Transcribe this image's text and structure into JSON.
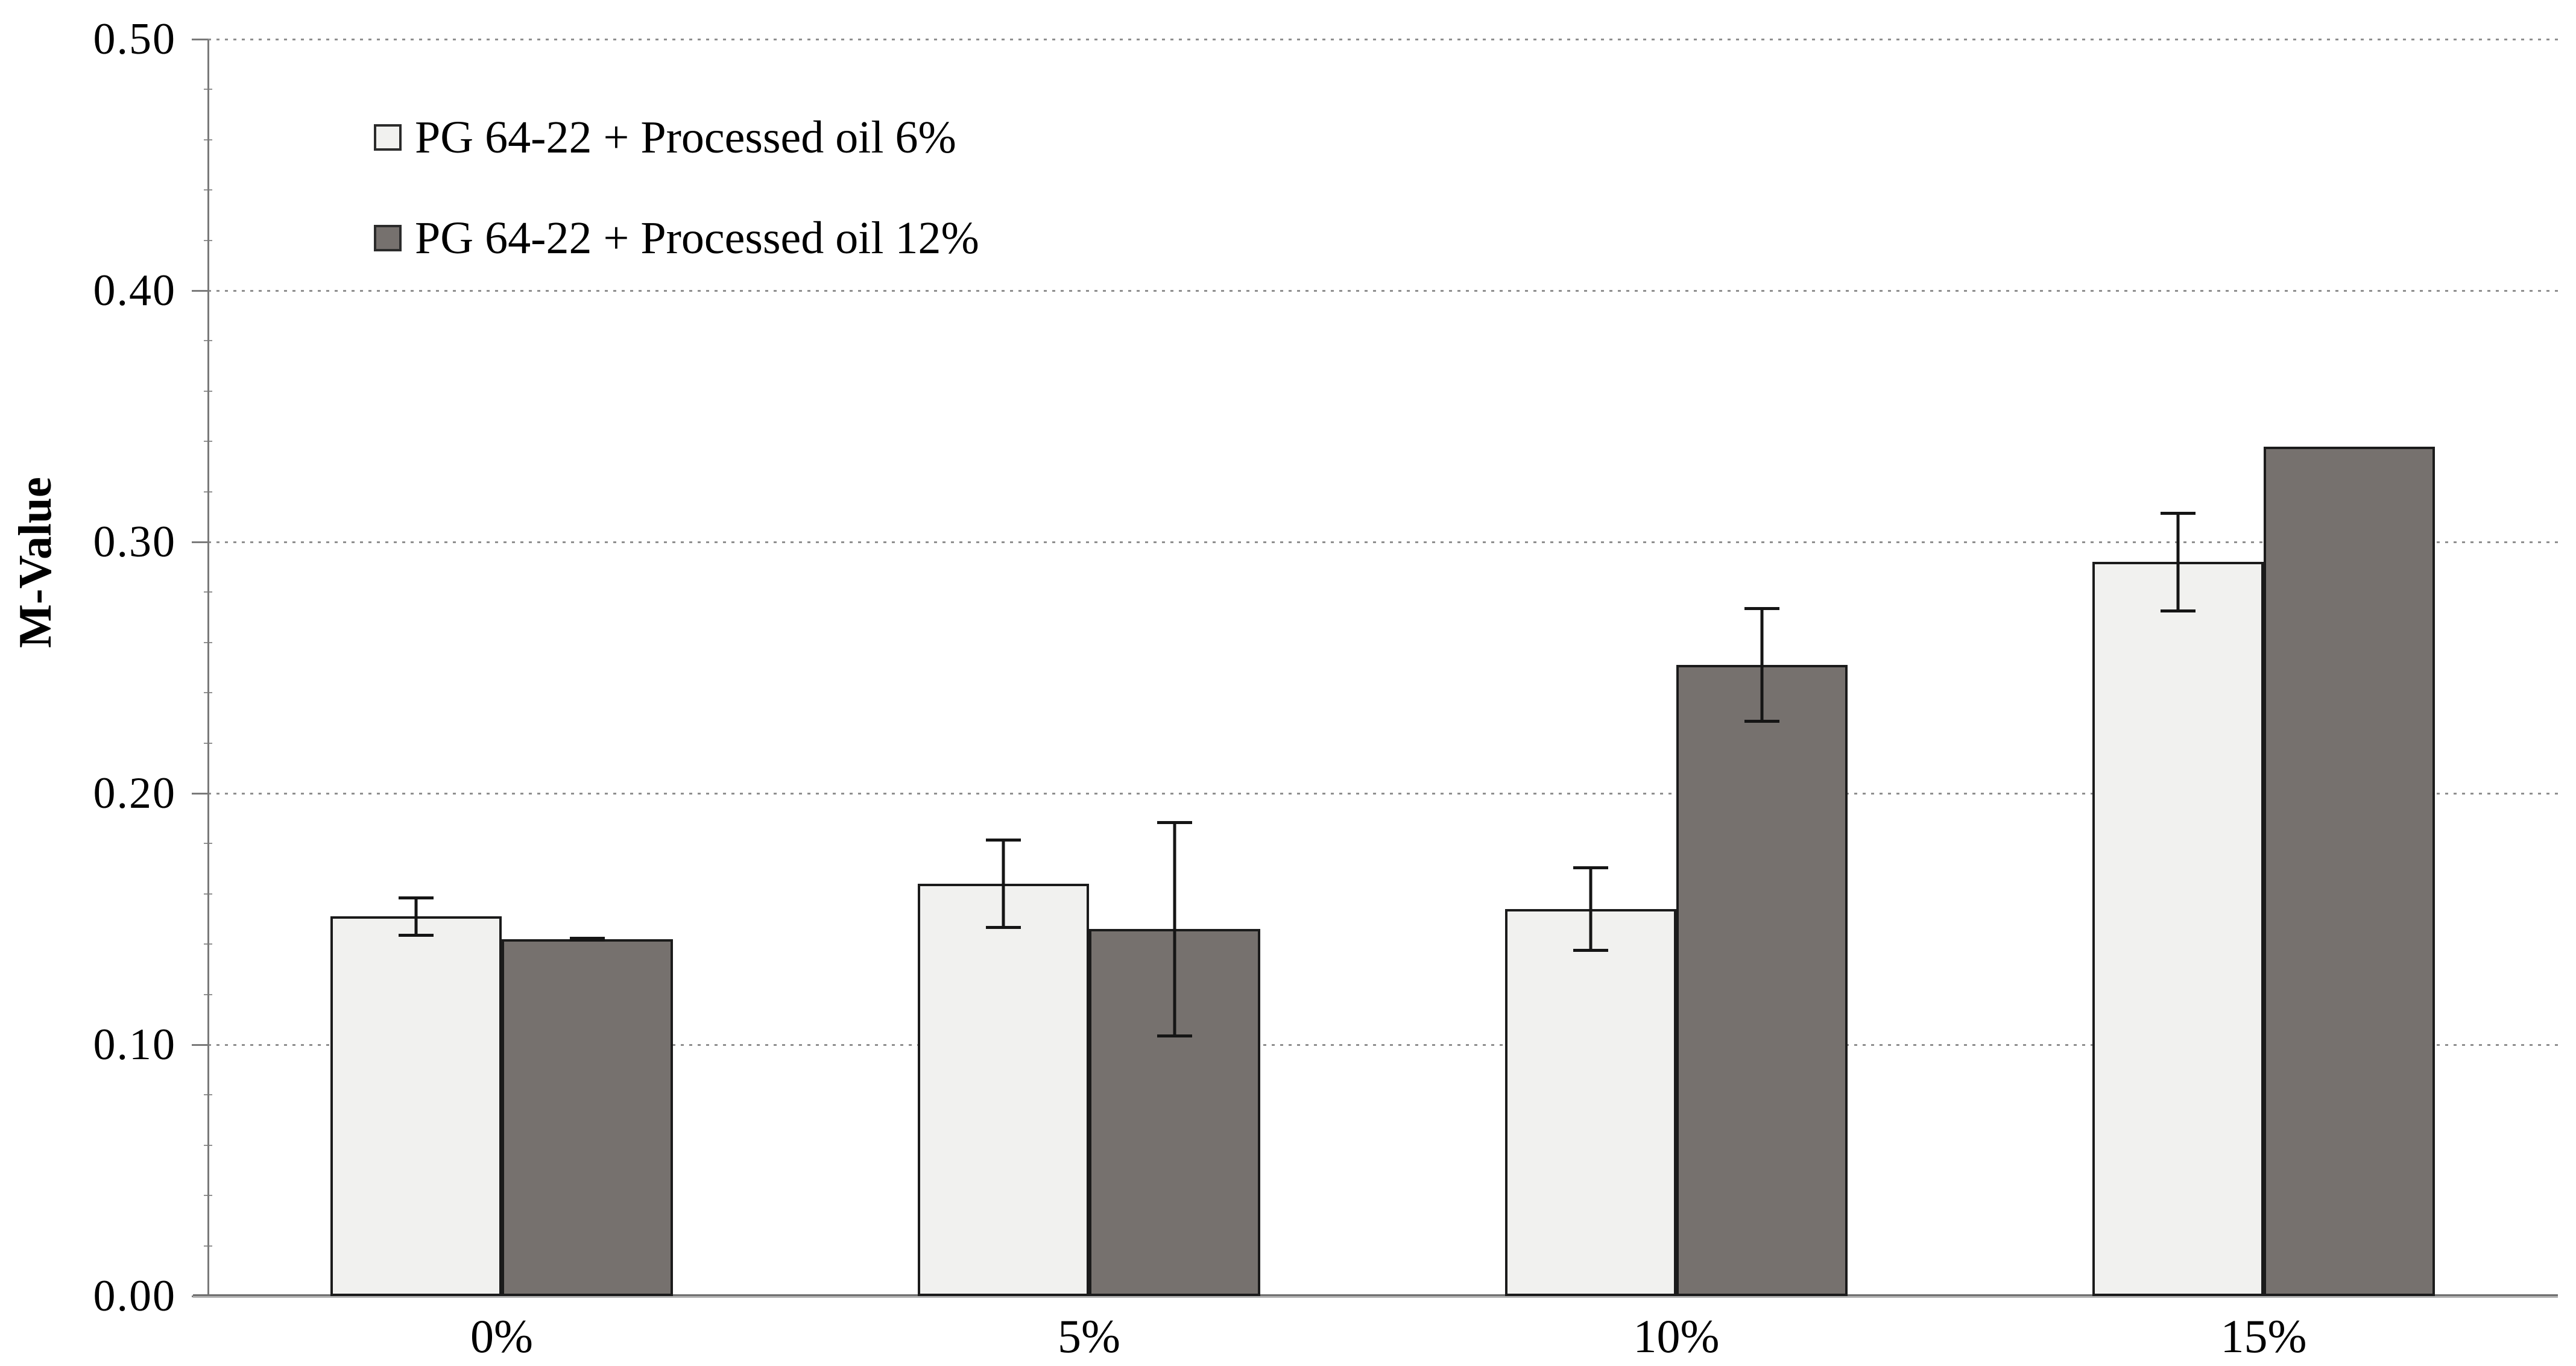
{
  "chart_data": {
    "type": "bar",
    "title": "",
    "xlabel": "",
    "ylabel": "M-Value",
    "categories": [
      "0%",
      "5%",
      "10%",
      "15%"
    ],
    "series": [
      {
        "name": "PG 64-22 + Processed oil 6%",
        "fill": "#f1f1ef",
        "values": [
          0.151,
          0.164,
          0.154,
          0.292
        ],
        "errors": [
          0.008,
          0.018,
          0.017,
          0.02
        ]
      },
      {
        "name": "PG 64-22 + Processed oil 12%",
        "fill": "#76716e",
        "values": [
          0.142,
          0.146,
          0.251,
          0.338
        ],
        "errors": [
          0.001,
          0.043,
          0.023,
          0
        ]
      }
    ],
    "y_ticks": [
      "0.00",
      "0.10",
      "0.20",
      "0.30",
      "0.40",
      "0.50"
    ],
    "ylim": [
      0.0,
      0.5
    ],
    "grid": "horizontal-dotted",
    "legend_position": "top-left-inside",
    "error_bars": "plus-minus-with-caps"
  },
  "colors": {
    "background": "#ffffff",
    "bar_border": "#1b1b1b",
    "axis": "#7a7a7a",
    "gridline": "#8f8f8f",
    "error_bar": "#151515",
    "text": "#000000"
  }
}
